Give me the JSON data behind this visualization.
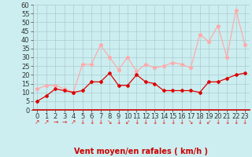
{
  "xlabel": "Vent moyen/en rafales ( km/h )",
  "bg_color": "#cceef0",
  "grid_color": "#aaccd0",
  "line1_color": "#dd0000",
  "line2_color": "#ffaaaa",
  "x": [
    0,
    1,
    2,
    3,
    4,
    5,
    6,
    7,
    8,
    9,
    10,
    11,
    12,
    13,
    14,
    15,
    16,
    17,
    18,
    19,
    20,
    21,
    22,
    23
  ],
  "y_mean": [
    5,
    8,
    12,
    11,
    10,
    11,
    16,
    16,
    21,
    14,
    14,
    20,
    16,
    15,
    11,
    11,
    11,
    11,
    10,
    16,
    16,
    18,
    20,
    21
  ],
  "y_gust": [
    12,
    14,
    14,
    12,
    10,
    26,
    26,
    37,
    30,
    23,
    30,
    22,
    26,
    24,
    25,
    27,
    26,
    24,
    43,
    39,
    48,
    30,
    57,
    37
  ],
  "ylim": [
    0,
    60
  ],
  "yticks": [
    0,
    5,
    10,
    15,
    20,
    25,
    30,
    35,
    40,
    45,
    50,
    55,
    60
  ],
  "xticks": [
    0,
    1,
    2,
    3,
    4,
    5,
    6,
    7,
    8,
    9,
    10,
    11,
    12,
    13,
    14,
    15,
    16,
    17,
    18,
    19,
    20,
    21,
    22,
    23
  ],
  "arrow_symbols": [
    "↗",
    "↗",
    "→",
    "→",
    "↗",
    "↓",
    "↓",
    "↓",
    "↘",
    "↓",
    "↙",
    "↓",
    "↓",
    "↓",
    "↓",
    "↓",
    "↓",
    "↘",
    "↓",
    "↙",
    "↓",
    "↓",
    "↓",
    "↓"
  ],
  "arrow_color": "#dd2222",
  "xlabel_color": "#cc0000",
  "xlabel_fontsize": 7,
  "tick_fontsize": 6,
  "axis_label_color": "#cc0000"
}
